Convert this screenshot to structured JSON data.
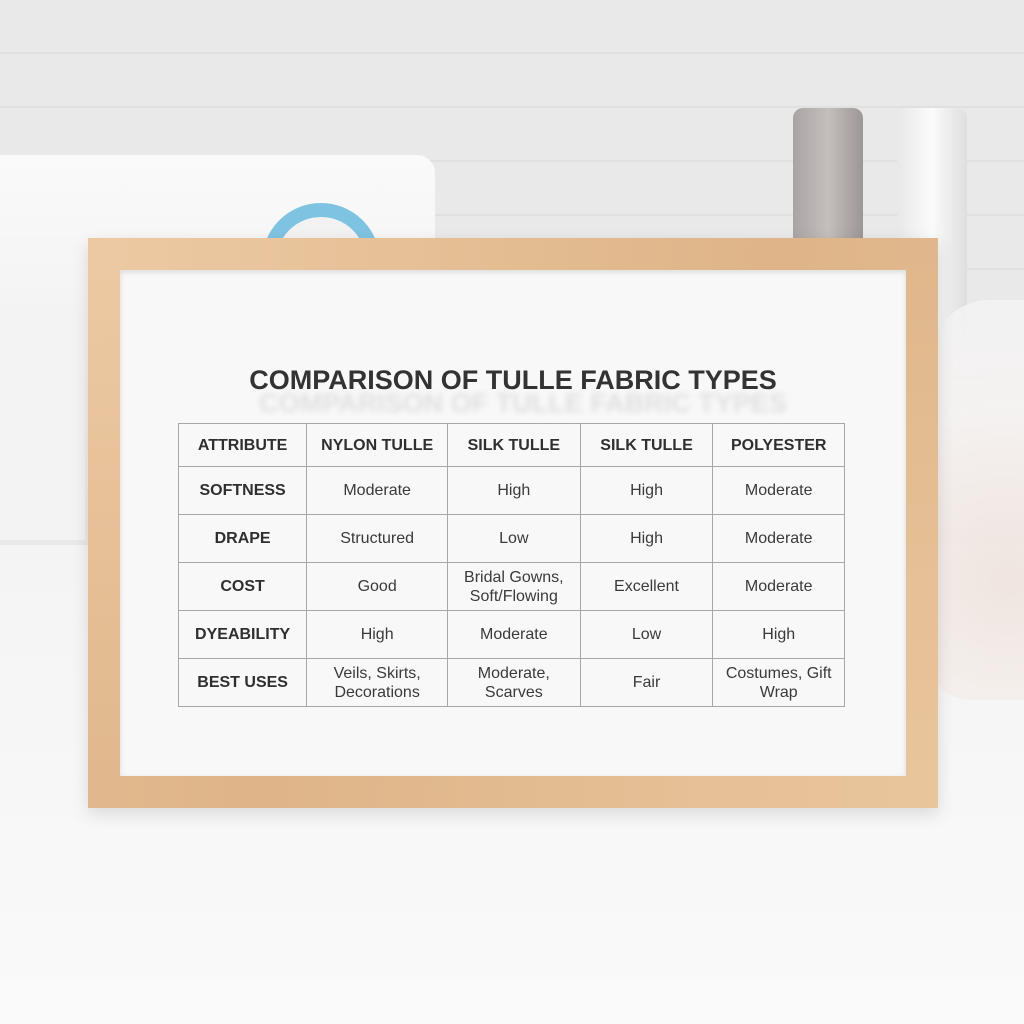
{
  "title": "COMPARISON OF TULLE FABRIC TYPES",
  "table": {
    "headers": [
      "ATTRIBUTE",
      "NYLON TULLE",
      "SILK TULLE",
      "SILK TULLE",
      "POLYESTER"
    ],
    "rows": [
      [
        "SOFTNESS",
        "Moderate",
        "High",
        "High",
        "Moderate"
      ],
      [
        "DRAPE",
        "Structured",
        "Low",
        "High",
        "Moderate"
      ],
      [
        "COST",
        "Good",
        "Bridal Gowns, Soft/Flowing",
        "Excellent",
        "Moderate"
      ],
      [
        "DYEABILITY",
        "High",
        "Moderate",
        "Low",
        "High"
      ],
      [
        "BEST USES",
        "Veils, Skirts, Decorations",
        "Moderate, Scarves",
        "Fair",
        "Costumes, Gift Wrap"
      ]
    ]
  },
  "colors": {
    "frame": "#e6c29a",
    "accent": "#7fc3e2"
  }
}
